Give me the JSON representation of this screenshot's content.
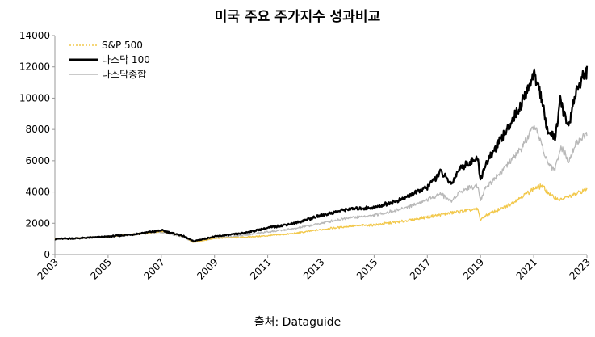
{
  "chart_data": {
    "type": "line",
    "title": "미국 주요 주가지수 성과비교",
    "source": "출처: Dataguide",
    "xlabel": "",
    "ylabel": "",
    "x_ticks": [
      "2003",
      "2005",
      "2007",
      "2009",
      "2011",
      "2013",
      "2015",
      "2017",
      "2019",
      "2021",
      "2023"
    ],
    "y_ticks": [
      "0",
      "2000",
      "4000",
      "6000",
      "8000",
      "10000",
      "12000",
      "14000"
    ],
    "xlim": [
      2003.0,
      2023.0
    ],
    "ylim": [
      0,
      14000
    ],
    "grid": false,
    "legend_position": "top-left",
    "series": [
      {
        "name": "S&P 500",
        "color": "#f2c84b",
        "style": "dotted",
        "x": [
          2003.0,
          2004.0,
          2005.0,
          2006.0,
          2007.0,
          2007.8,
          2008.2,
          2009.0,
          2010.0,
          2011.0,
          2012.0,
          2013.0,
          2014.0,
          2015.0,
          2016.0,
          2017.0,
          2018.0,
          2018.9,
          2019.0,
          2019.2,
          2020.0,
          2021.0,
          2021.3,
          2021.7,
          2022.0,
          2022.5,
          2023.0
        ],
        "values": [
          1000,
          1050,
          1150,
          1300,
          1500,
          1200,
          780,
          1050,
          1100,
          1200,
          1350,
          1600,
          1800,
          1900,
          2100,
          2400,
          2700,
          2900,
          2200,
          2500,
          3100,
          4200,
          4400,
          3700,
          3500,
          3800,
          4200
        ]
      },
      {
        "name": "나스닥 100",
        "color": "#000000",
        "style": "solid",
        "x": [
          2003.0,
          2004.0,
          2005.0,
          2006.0,
          2007.0,
          2007.8,
          2008.2,
          2009.0,
          2010.0,
          2011.0,
          2012.0,
          2013.0,
          2014.0,
          2015.0,
          2016.0,
          2017.0,
          2017.5,
          2017.9,
          2018.2,
          2018.6,
          2018.9,
          2019.0,
          2019.2,
          2020.0,
          2020.5,
          2021.0,
          2021.2,
          2021.5,
          2021.8,
          2022.0,
          2022.3,
          2022.6,
          2023.0
        ],
        "values": [
          1000,
          1050,
          1150,
          1300,
          1550,
          1200,
          850,
          1150,
          1350,
          1700,
          2000,
          2500,
          2900,
          3000,
          3500,
          4300,
          5300,
          4500,
          5500,
          5900,
          6100,
          4800,
          5800,
          8000,
          9500,
          11500,
          10800,
          8000,
          7400,
          9800,
          8200,
          10500,
          11800
        ]
      },
      {
        "name": "나스닥종합",
        "color": "#b8b8b8",
        "style": "solid",
        "x": [
          2003.0,
          2004.0,
          2005.0,
          2006.0,
          2007.0,
          2007.8,
          2008.2,
          2009.0,
          2010.0,
          2011.0,
          2012.0,
          2013.0,
          2014.0,
          2015.0,
          2016.0,
          2017.0,
          2017.5,
          2017.9,
          2018.2,
          2018.6,
          2018.9,
          2019.0,
          2019.2,
          2020.0,
          2020.5,
          2021.0,
          2021.2,
          2021.5,
          2021.8,
          2022.0,
          2022.3,
          2022.6,
          2023.0
        ],
        "values": [
          1000,
          1050,
          1150,
          1250,
          1450,
          1150,
          800,
          1050,
          1200,
          1450,
          1650,
          2000,
          2350,
          2500,
          2900,
          3500,
          3900,
          3400,
          4000,
          4300,
          4400,
          3500,
          4300,
          5700,
          6700,
          8100,
          7600,
          5900,
          5400,
          6900,
          6000,
          7200,
          7700
        ]
      }
    ]
  }
}
